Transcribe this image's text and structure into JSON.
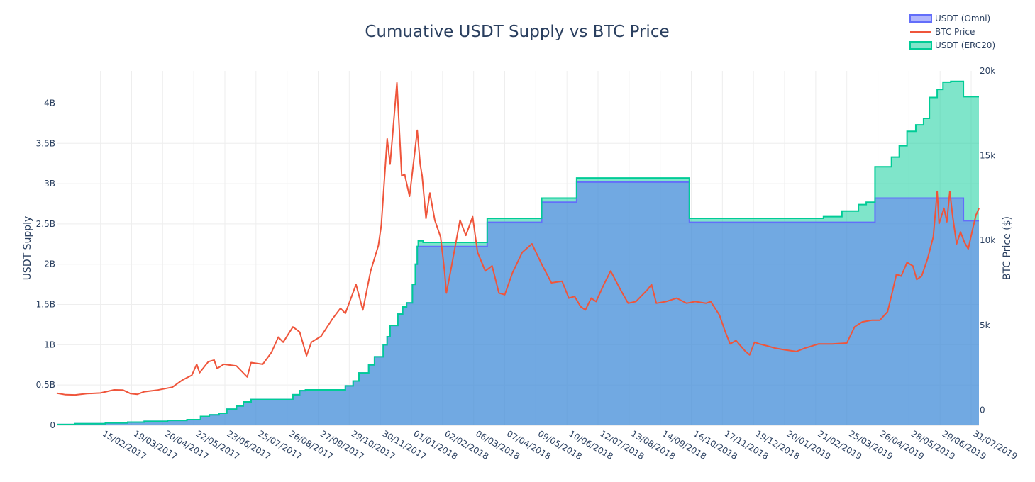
{
  "chart_data": {
    "type": "area",
    "title": "Cumuative USDT Supply vs BTC Price",
    "y_left_label": "USDT Supply",
    "y_right_label": "BTC Price ($)",
    "x_range": [
      "2017-01-01",
      "2019-08-08"
    ],
    "y_left_range": [
      0,
      4.4
    ],
    "y_right_range": [
      -900,
      20000
    ],
    "y_left_unit": "billions USDT",
    "y_left_ticks": [
      {
        "value": 0,
        "label": "0"
      },
      {
        "value": 0.5,
        "label": "0.5B"
      },
      {
        "value": 1,
        "label": "1B"
      },
      {
        "value": 1.5,
        "label": "1.5B"
      },
      {
        "value": 2,
        "label": "2B"
      },
      {
        "value": 2.5,
        "label": "2.5B"
      },
      {
        "value": 3,
        "label": "3B"
      },
      {
        "value": 3.5,
        "label": "3.5B"
      },
      {
        "value": 4,
        "label": "4B"
      }
    ],
    "y_right_ticks": [
      {
        "value": 0,
        "label": "0"
      },
      {
        "value": 5000,
        "label": "5k"
      },
      {
        "value": 10000,
        "label": "10k"
      },
      {
        "value": 15000,
        "label": "15k"
      },
      {
        "value": 20000,
        "label": "20k"
      }
    ],
    "x_ticks": [
      {
        "date": "2017-02-15",
        "label": "15/02/2017"
      },
      {
        "date": "2017-03-19",
        "label": "19/03/2017"
      },
      {
        "date": "2017-04-20",
        "label": "20/04/2017"
      },
      {
        "date": "2017-05-22",
        "label": "22/05/2017"
      },
      {
        "date": "2017-06-23",
        "label": "23/06/2017"
      },
      {
        "date": "2017-07-25",
        "label": "25/07/2017"
      },
      {
        "date": "2017-08-26",
        "label": "26/08/2017"
      },
      {
        "date": "2017-09-27",
        "label": "27/09/2017"
      },
      {
        "date": "2017-10-29",
        "label": "29/10/2017"
      },
      {
        "date": "2017-11-30",
        "label": "30/11/2017"
      },
      {
        "date": "2018-01-01",
        "label": "01/01/2018"
      },
      {
        "date": "2018-02-02",
        "label": "02/02/2018"
      },
      {
        "date": "2018-03-06",
        "label": "06/03/2018"
      },
      {
        "date": "2018-04-07",
        "label": "07/04/2018"
      },
      {
        "date": "2018-05-09",
        "label": "09/05/2018"
      },
      {
        "date": "2018-06-10",
        "label": "10/06/2018"
      },
      {
        "date": "2018-07-12",
        "label": "12/07/2018"
      },
      {
        "date": "2018-08-13",
        "label": "13/08/2018"
      },
      {
        "date": "2018-09-14",
        "label": "14/09/2018"
      },
      {
        "date": "2018-10-16",
        "label": "16/10/2018"
      },
      {
        "date": "2018-11-17",
        "label": "17/11/2018"
      },
      {
        "date": "2018-12-19",
        "label": "19/12/2018"
      },
      {
        "date": "2019-01-20",
        "label": "20/01/2019"
      },
      {
        "date": "2019-02-21",
        "label": "21/02/2019"
      },
      {
        "date": "2019-03-25",
        "label": "25/03/2019"
      },
      {
        "date": "2019-04-26",
        "label": "26/04/2019"
      },
      {
        "date": "2019-05-28",
        "label": "28/05/2019"
      },
      {
        "date": "2019-06-29",
        "label": "29/06/2019"
      },
      {
        "date": "2019-07-31",
        "label": "31/07/2019"
      }
    ],
    "legend_position": "top-right",
    "series": [
      {
        "name": "USDT (Omni)",
        "axis": "left",
        "kind": "step-area",
        "color": "#636efa",
        "fill": "rgba(99,110,250,0.5)",
        "points": [
          [
            "2017-01-01",
            0.01
          ],
          [
            "2017-01-20",
            0.02
          ],
          [
            "2017-02-20",
            0.03
          ],
          [
            "2017-03-15",
            0.04
          ],
          [
            "2017-04-01",
            0.05
          ],
          [
            "2017-04-25",
            0.06
          ],
          [
            "2017-05-15",
            0.07
          ],
          [
            "2017-05-29",
            0.11
          ],
          [
            "2017-06-07",
            0.13
          ],
          [
            "2017-06-17",
            0.15
          ],
          [
            "2017-06-25",
            0.2
          ],
          [
            "2017-07-05",
            0.24
          ],
          [
            "2017-07-12",
            0.29
          ],
          [
            "2017-07-20",
            0.32
          ],
          [
            "2017-09-01",
            0.38
          ],
          [
            "2017-09-08",
            0.43
          ],
          [
            "2017-09-14",
            0.44
          ],
          [
            "2017-10-25",
            0.49
          ],
          [
            "2017-11-02",
            0.55
          ],
          [
            "2017-11-08",
            0.65
          ],
          [
            "2017-11-18",
            0.75
          ],
          [
            "2017-11-24",
            0.85
          ],
          [
            "2017-12-03",
            1.0
          ],
          [
            "2017-12-07",
            1.1
          ],
          [
            "2017-12-10",
            1.24
          ],
          [
            "2017-12-18",
            1.38
          ],
          [
            "2017-12-23",
            1.47
          ],
          [
            "2017-12-27",
            1.52
          ],
          [
            "2018-01-02",
            1.75
          ],
          [
            "2018-01-05",
            2.0
          ],
          [
            "2018-01-07",
            2.22
          ],
          [
            "2018-01-13",
            2.22
          ],
          [
            "2018-03-20",
            2.52
          ],
          [
            "2018-05-15",
            2.77
          ],
          [
            "2018-06-20",
            3.02
          ],
          [
            "2018-10-14",
            2.52
          ],
          [
            "2019-04-23",
            2.82
          ],
          [
            "2019-07-23",
            2.54
          ],
          [
            "2019-08-08",
            2.54
          ]
        ]
      },
      {
        "name": "BTC Price",
        "axis": "right",
        "kind": "line",
        "color": "#ef553b",
        "points": [
          [
            "2017-01-01",
            998
          ],
          [
            "2017-01-10",
            905
          ],
          [
            "2017-01-20",
            895
          ],
          [
            "2017-02-01",
            970
          ],
          [
            "2017-02-15",
            1008
          ],
          [
            "2017-03-01",
            1190
          ],
          [
            "2017-03-10",
            1180
          ],
          [
            "2017-03-18",
            970
          ],
          [
            "2017-03-25",
            930
          ],
          [
            "2017-04-01",
            1080
          ],
          [
            "2017-04-15",
            1180
          ],
          [
            "2017-04-30",
            1350
          ],
          [
            "2017-05-10",
            1760
          ],
          [
            "2017-05-20",
            2050
          ],
          [
            "2017-05-25",
            2700
          ],
          [
            "2017-05-28",
            2200
          ],
          [
            "2017-06-06",
            2850
          ],
          [
            "2017-06-12",
            2950
          ],
          [
            "2017-06-15",
            2450
          ],
          [
            "2017-06-22",
            2700
          ],
          [
            "2017-07-05",
            2600
          ],
          [
            "2017-07-16",
            1950
          ],
          [
            "2017-07-20",
            2800
          ],
          [
            "2017-08-01",
            2700
          ],
          [
            "2017-08-10",
            3400
          ],
          [
            "2017-08-17",
            4300
          ],
          [
            "2017-08-22",
            4000
          ],
          [
            "2017-09-01",
            4900
          ],
          [
            "2017-09-08",
            4600
          ],
          [
            "2017-09-15",
            3200
          ],
          [
            "2017-09-20",
            4000
          ],
          [
            "2017-09-30",
            4350
          ],
          [
            "2017-10-12",
            5400
          ],
          [
            "2017-10-20",
            6000
          ],
          [
            "2017-10-25",
            5700
          ],
          [
            "2017-11-05",
            7400
          ],
          [
            "2017-11-12",
            5900
          ],
          [
            "2017-11-20",
            8200
          ],
          [
            "2017-11-28",
            9700
          ],
          [
            "2017-12-01",
            10900
          ],
          [
            "2017-12-07",
            16000
          ],
          [
            "2017-12-10",
            14500
          ],
          [
            "2017-12-13",
            16500
          ],
          [
            "2017-12-17",
            19300
          ],
          [
            "2017-12-22",
            13800
          ],
          [
            "2017-12-25",
            13900
          ],
          [
            "2017-12-30",
            12600
          ],
          [
            "2018-01-04",
            15000
          ],
          [
            "2018-01-07",
            16500
          ],
          [
            "2018-01-10",
            14500
          ],
          [
            "2018-01-12",
            13800
          ],
          [
            "2018-01-16",
            11300
          ],
          [
            "2018-01-20",
            12800
          ],
          [
            "2018-01-25",
            11200
          ],
          [
            "2018-01-31",
            10200
          ],
          [
            "2018-02-04",
            8200
          ],
          [
            "2018-02-06",
            6900
          ],
          [
            "2018-02-10",
            8100
          ],
          [
            "2018-02-20",
            11200
          ],
          [
            "2018-02-26",
            10300
          ],
          [
            "2018-03-05",
            11400
          ],
          [
            "2018-03-10",
            9300
          ],
          [
            "2018-03-18",
            8200
          ],
          [
            "2018-03-25",
            8500
          ],
          [
            "2018-04-01",
            6900
          ],
          [
            "2018-04-07",
            6800
          ],
          [
            "2018-04-15",
            8100
          ],
          [
            "2018-04-25",
            9300
          ],
          [
            "2018-05-05",
            9800
          ],
          [
            "2018-05-15",
            8600
          ],
          [
            "2018-05-25",
            7500
          ],
          [
            "2018-06-05",
            7600
          ],
          [
            "2018-06-12",
            6600
          ],
          [
            "2018-06-18",
            6700
          ],
          [
            "2018-06-24",
            6100
          ],
          [
            "2018-06-29",
            5900
          ],
          [
            "2018-07-05",
            6600
          ],
          [
            "2018-07-10",
            6400
          ],
          [
            "2018-07-18",
            7400
          ],
          [
            "2018-07-25",
            8200
          ],
          [
            "2018-08-05",
            7000
          ],
          [
            "2018-08-12",
            6300
          ],
          [
            "2018-08-20",
            6400
          ],
          [
            "2018-09-01",
            7100
          ],
          [
            "2018-09-05",
            7400
          ],
          [
            "2018-09-10",
            6300
          ],
          [
            "2018-09-20",
            6400
          ],
          [
            "2018-10-01",
            6600
          ],
          [
            "2018-10-11",
            6300
          ],
          [
            "2018-10-20",
            6400
          ],
          [
            "2018-10-31",
            6300
          ],
          [
            "2018-11-05",
            6400
          ],
          [
            "2018-11-14",
            5600
          ],
          [
            "2018-11-20",
            4600
          ],
          [
            "2018-11-25",
            3900
          ],
          [
            "2018-12-01",
            4100
          ],
          [
            "2018-12-10",
            3500
          ],
          [
            "2018-12-15",
            3250
          ],
          [
            "2018-12-20",
            4000
          ],
          [
            "2018-12-25",
            3900
          ],
          [
            "2019-01-01",
            3800
          ],
          [
            "2019-01-10",
            3650
          ],
          [
            "2019-01-20",
            3550
          ],
          [
            "2019-02-01",
            3450
          ],
          [
            "2019-02-10",
            3650
          ],
          [
            "2019-02-24",
            3900
          ],
          [
            "2019-03-10",
            3900
          ],
          [
            "2019-03-25",
            3950
          ],
          [
            "2019-04-02",
            4900
          ],
          [
            "2019-04-10",
            5200
          ],
          [
            "2019-04-20",
            5300
          ],
          [
            "2019-04-28",
            5300
          ],
          [
            "2019-05-06",
            5800
          ],
          [
            "2019-05-11",
            7000
          ],
          [
            "2019-05-15",
            8000
          ],
          [
            "2019-05-20",
            7900
          ],
          [
            "2019-05-26",
            8700
          ],
          [
            "2019-06-01",
            8500
          ],
          [
            "2019-06-05",
            7700
          ],
          [
            "2019-06-10",
            7900
          ],
          [
            "2019-06-16",
            8900
          ],
          [
            "2019-06-22",
            10200
          ],
          [
            "2019-06-26",
            12900
          ],
          [
            "2019-06-28",
            11000
          ],
          [
            "2019-07-03",
            11900
          ],
          [
            "2019-07-06",
            11100
          ],
          [
            "2019-07-09",
            12900
          ],
          [
            "2019-07-12",
            11400
          ],
          [
            "2019-07-16",
            9800
          ],
          [
            "2019-07-20",
            10500
          ],
          [
            "2019-07-24",
            9900
          ],
          [
            "2019-07-28",
            9500
          ],
          [
            "2019-08-02",
            10800
          ],
          [
            "2019-08-05",
            11500
          ],
          [
            "2019-08-08",
            11900
          ]
        ]
      },
      {
        "name": "USDT (ERC20)",
        "axis": "left",
        "kind": "stacked-step-area",
        "color": "#00cc96",
        "fill": "rgba(0,204,150,0.5)",
        "points": [
          [
            "2017-01-01",
            0
          ],
          [
            "2018-01-08",
            0.07
          ],
          [
            "2018-01-13",
            0.05
          ],
          [
            "2018-03-20",
            0.05
          ],
          [
            "2018-05-15",
            0.05
          ],
          [
            "2018-06-20",
            0.05
          ],
          [
            "2018-10-14",
            0.05
          ],
          [
            "2019-03-01",
            0.07
          ],
          [
            "2019-03-20",
            0.14
          ],
          [
            "2019-04-06",
            0.22
          ],
          [
            "2019-04-14",
            0.25
          ],
          [
            "2019-04-23",
            0.39
          ],
          [
            "2019-05-10",
            0.51
          ],
          [
            "2019-05-18",
            0.65
          ],
          [
            "2019-05-26",
            0.83
          ],
          [
            "2019-06-04",
            0.91
          ],
          [
            "2019-06-12",
            0.99
          ],
          [
            "2019-06-18",
            1.25
          ],
          [
            "2019-06-26",
            1.35
          ],
          [
            "2019-07-02",
            1.44
          ],
          [
            "2019-07-10",
            1.45
          ],
          [
            "2019-07-23",
            1.54
          ],
          [
            "2019-08-08",
            1.54
          ]
        ]
      }
    ]
  }
}
